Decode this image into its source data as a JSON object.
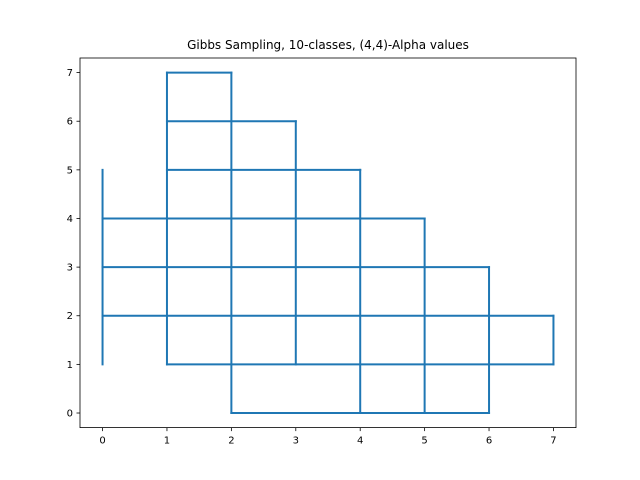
{
  "chart_data": {
    "type": "line",
    "title": "Gibbs Sampling, 10-classes, (4,4)-Alpha values",
    "xlabel": "",
    "ylabel": "",
    "xlim": [
      -0.35,
      7.35
    ],
    "ylim": [
      -0.3,
      7.3
    ],
    "xticks": [
      0,
      1,
      2,
      3,
      4,
      5,
      6,
      7
    ],
    "yticks": [
      0,
      1,
      2,
      3,
      4,
      5,
      6,
      7
    ],
    "grid": false,
    "series_color": "#1f77b4",
    "series": [
      {
        "horizontal_segments": [
          {
            "y": 7,
            "x1": 1,
            "x2": 2
          },
          {
            "y": 6,
            "x1": 1,
            "x2": 3
          },
          {
            "y": 5,
            "x1": 1,
            "x2": 4
          },
          {
            "y": 4,
            "x1": 0,
            "x2": 5
          },
          {
            "y": 3,
            "x1": 0,
            "x2": 6
          },
          {
            "y": 2,
            "x1": 0,
            "x2": 7
          },
          {
            "y": 1,
            "x1": 1,
            "x2": 7
          },
          {
            "y": 0,
            "x1": 2,
            "x2": 6
          }
        ],
        "vertical_segments": [
          {
            "x": 0,
            "y1": 1,
            "y2": 5
          },
          {
            "x": 1,
            "y1": 1,
            "y2": 7
          },
          {
            "x": 2,
            "y1": 0,
            "y2": 7
          },
          {
            "x": 3,
            "y1": 1,
            "y2": 6
          },
          {
            "x": 4,
            "y1": 0,
            "y2": 5
          },
          {
            "x": 5,
            "y1": 0,
            "y2": 4
          },
          {
            "x": 6,
            "y1": 0,
            "y2": 3
          },
          {
            "x": 7,
            "y1": 1,
            "y2": 2
          }
        ]
      }
    ]
  }
}
